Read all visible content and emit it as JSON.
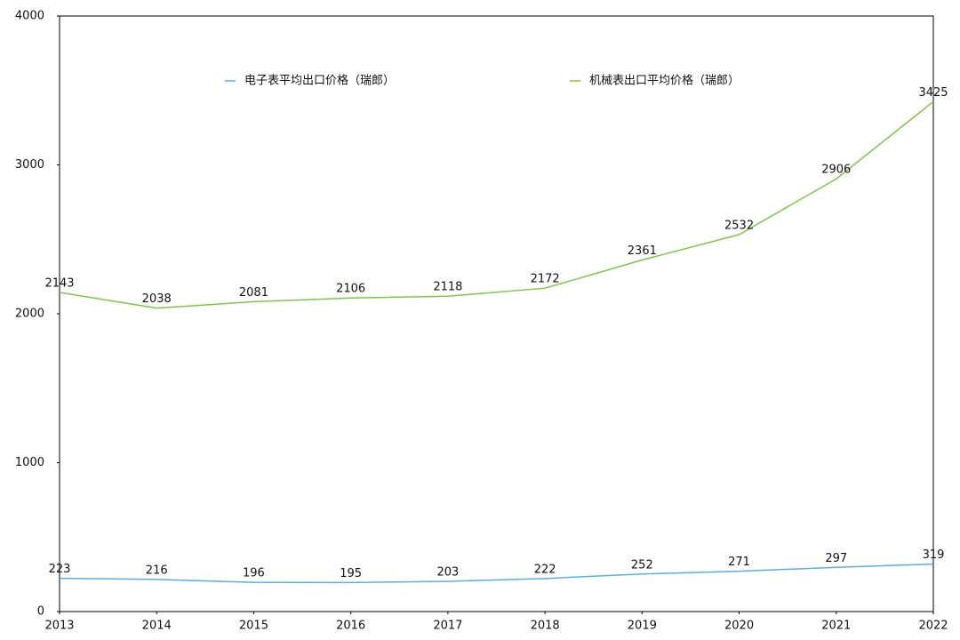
{
  "chart_data": {
    "type": "line",
    "x": [
      2013,
      2014,
      2015,
      2016,
      2017,
      2018,
      2019,
      2020,
      2021,
      2022
    ],
    "xlim": [
      2013,
      2022
    ],
    "xticks": [
      2013,
      2014,
      2015,
      2016,
      2017,
      2018,
      2019,
      2020,
      2021,
      2022
    ],
    "ylim": [
      0,
      4000
    ],
    "yticks": [
      0,
      1000,
      2000,
      3000,
      4000
    ],
    "grid": false,
    "legend": "top",
    "series": [
      {
        "name": "电子表平均出口价格（瑞郎）",
        "color": "#5aaee8",
        "values": [
          223,
          216,
          196,
          195,
          203,
          222,
          252,
          271,
          297,
          319
        ]
      },
      {
        "name": "机械表出口平均价格（瑞郎）",
        "color": "#7ac943",
        "values": [
          2143,
          2038,
          2081,
          2106,
          2118,
          2172,
          2361,
          2532,
          2906,
          3425
        ]
      }
    ]
  }
}
